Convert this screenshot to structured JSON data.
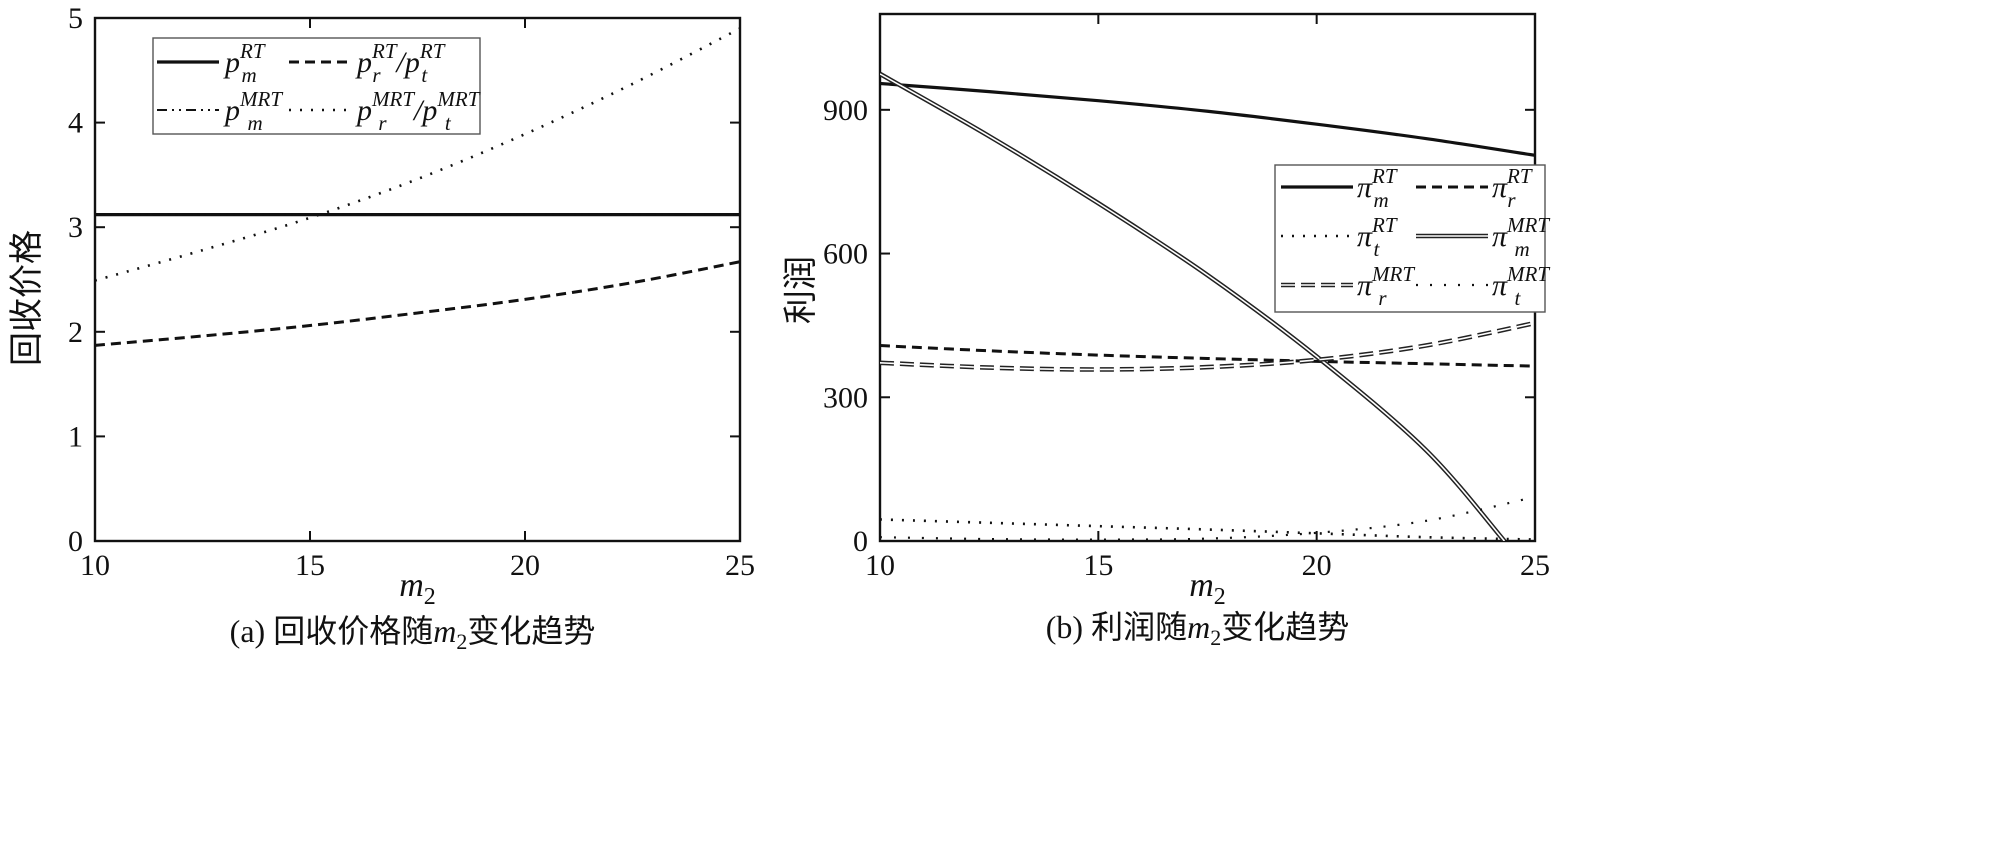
{
  "chart_data": [
    {
      "type": "line",
      "caption": "(a)  回收价格随m2变化趋势",
      "caption_parts": {
        "prefix": "(a)  回收价格随",
        "var": "m",
        "sub": "2",
        "suffix": "变化趋势"
      },
      "xlabel": {
        "var": "m",
        "sub": "2"
      },
      "ylabel": "回收价格",
      "xlim": [
        10,
        25
      ],
      "ylim": [
        0,
        5
      ],
      "xticks": [
        "10",
        "15",
        "20",
        "25"
      ],
      "yticks": [
        "0",
        "1",
        "2",
        "3",
        "4",
        "5"
      ],
      "legend_position": "top-left",
      "series": [
        {
          "key": "pmRT",
          "style": "solid",
          "legend": [
            {
              "base": "p",
              "sub": "m",
              "sup": "RT"
            }
          ],
          "x": [
            10,
            12.5,
            15,
            17.5,
            20,
            22.5,
            25
          ],
          "y": [
            3.12,
            3.12,
            3.12,
            3.12,
            3.12,
            3.12,
            3.12
          ]
        },
        {
          "key": "prRT",
          "style": "dashed",
          "legend": [
            {
              "base": "p",
              "sub": "r",
              "sup": "RT"
            },
            {
              "base": "p",
              "sub": "t",
              "sup": "RT"
            }
          ],
          "x": [
            10,
            12.5,
            15,
            17.5,
            20,
            22.5,
            25
          ],
          "y": [
            1.87,
            1.96,
            2.06,
            2.18,
            2.31,
            2.47,
            2.67
          ]
        },
        {
          "key": "pmMRT",
          "style": "dashdotdot",
          "legend": [
            {
              "base": "p",
              "sub": "m",
              "sup": "MRT"
            }
          ],
          "x": [
            10,
            12.5,
            15,
            17.5,
            20,
            22.5,
            25
          ],
          "y": [
            3.12,
            3.12,
            3.12,
            3.12,
            3.12,
            3.12,
            3.12
          ]
        },
        {
          "key": "prMRT",
          "style": "dotted",
          "legend": [
            {
              "base": "p",
              "sub": "r",
              "sup": "MRT"
            },
            {
              "base": "p",
              "sub": "t",
              "sup": "MRT"
            }
          ],
          "x": [
            10,
            12.5,
            15,
            17.5,
            20,
            22.5,
            25
          ],
          "y": [
            2.49,
            2.78,
            3.09,
            3.46,
            3.89,
            4.37,
            4.9
          ]
        }
      ]
    },
    {
      "type": "line",
      "caption_parts": {
        "prefix": "(b)  利润随",
        "var": "m",
        "sub": "2",
        "suffix": "变化趋势"
      },
      "xlabel": {
        "var": "m",
        "sub": "2"
      },
      "ylabel": "利润",
      "xlim": [
        10,
        25
      ],
      "ylim": [
        0,
        1100
      ],
      "xticks": [
        "10",
        "15",
        "20",
        "25"
      ],
      "yticks": [
        "0",
        "300",
        "600",
        "900"
      ],
      "legend_position": "right",
      "series": [
        {
          "key": "pimRT",
          "style": "solid",
          "legend": [
            {
              "base": "π",
              "sub": "m",
              "sup": "RT"
            }
          ],
          "x": [
            10,
            12.5,
            15,
            17.5,
            20,
            22.5,
            25
          ],
          "y": [
            955,
            938,
            919,
            897,
            870,
            840,
            805
          ]
        },
        {
          "key": "pirRT",
          "style": "dashed",
          "legend": [
            {
              "base": "π",
              "sub": "r",
              "sup": "RT"
            }
          ],
          "x": [
            10,
            12.5,
            15,
            17.5,
            20,
            22.5,
            25
          ],
          "y": [
            408,
            397,
            388,
            381,
            375,
            370,
            365
          ]
        },
        {
          "key": "pitRT",
          "style": "dotted",
          "legend": [
            {
              "base": "π",
              "sub": "t",
              "sup": "RT"
            }
          ],
          "x": [
            10,
            12.5,
            15,
            17.5,
            20,
            22.5,
            25
          ],
          "y": [
            45,
            38,
            31,
            24,
            16,
            8,
            3
          ]
        },
        {
          "key": "pimMRT",
          "style": "double",
          "legend": [
            {
              "base": "π",
              "sub": "m",
              "sup": "MRT"
            }
          ],
          "x": [
            10,
            12.5,
            15,
            17.5,
            20,
            22.5,
            24.3
          ],
          "y": [
            975,
            845,
            705,
            555,
            385,
            190,
            0
          ]
        },
        {
          "key": "pirMRT",
          "style": "longdash-double",
          "legend": [
            {
              "base": "π",
              "sub": "r",
              "sup": "MRT"
            }
          ],
          "x": [
            10,
            12.5,
            15,
            17.5,
            20,
            22.5,
            25
          ],
          "y": [
            372,
            362,
            358,
            363,
            378,
            408,
            455
          ]
        },
        {
          "key": "pitMRT",
          "style": "sparse-dotted",
          "legend": [
            {
              "base": "π",
              "sub": "t",
              "sup": "MRT"
            }
          ],
          "x": [
            10,
            12.5,
            15,
            17.5,
            20,
            22.5,
            25
          ],
          "y": [
            8,
            4,
            3,
            5,
            17,
            42,
            92
          ]
        }
      ]
    }
  ]
}
